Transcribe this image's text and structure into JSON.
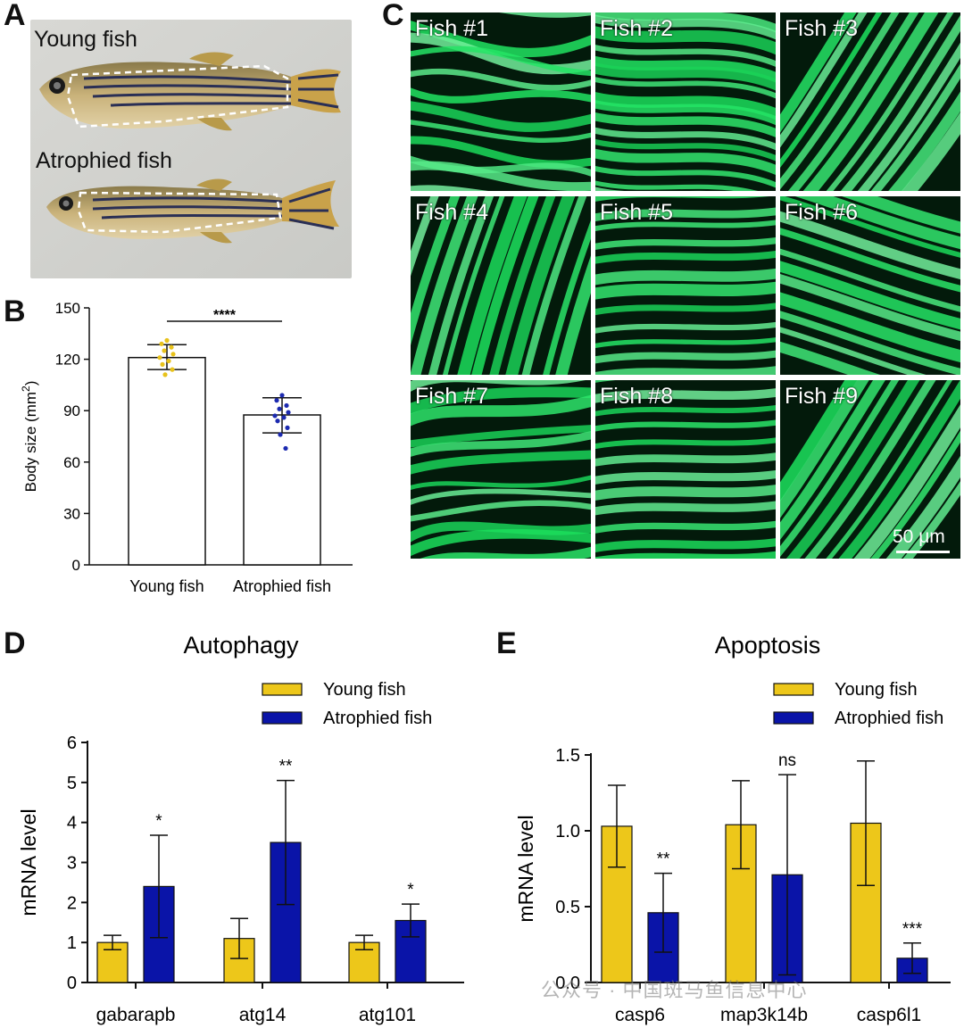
{
  "panels": {
    "A": {
      "letter": "A",
      "label_top": "Young fish",
      "label_bottom": "Atrophied fish"
    },
    "B": {
      "letter": "B"
    },
    "C": {
      "letter": "C",
      "tiles": [
        "Fish #1",
        "Fish #2",
        "Fish #3",
        "Fish #4",
        "Fish #5",
        "Fish #6",
        "Fish #7",
        "Fish #8",
        "Fish #9"
      ],
      "scale_bar": "50 μm"
    },
    "D": {
      "letter": "D"
    },
    "E": {
      "letter": "E"
    }
  },
  "colors": {
    "young": "#EDC71A",
    "atrophied": "#0A14A8",
    "scatter_young": "#E8C21B",
    "scatter_atrophied": "#1C2AB0",
    "fluor": "#3CE87A"
  },
  "watermark": "公众号 · 中国斑马鱼信息中心",
  "chart_data": [
    {
      "id": "B",
      "type": "bar",
      "title": "",
      "ylabel": "Body size (mm",
      "ylabel_sup": "2",
      "ylabel_close": ")",
      "categories": [
        "Young fish",
        "Atrophied fish"
      ],
      "values": [
        121,
        87.5
      ],
      "error": [
        [
          114,
          128.5
        ],
        [
          77,
          97.5
        ]
      ],
      "points": [
        [
          131,
          129,
          127,
          125,
          123,
          121,
          119,
          117,
          114,
          111
        ],
        [
          99,
          96,
          93,
          91,
          89,
          87,
          86,
          84,
          80,
          76,
          68
        ]
      ],
      "ylim": [
        0,
        150
      ],
      "yticks": [
        "0",
        "30",
        "60",
        "90",
        "120",
        "150"
      ],
      "significance": "****"
    },
    {
      "id": "D",
      "type": "bar",
      "title": "Autophagy",
      "ylabel": "mRNA level",
      "categories": [
        "gabarapb",
        "atg14",
        "atg101"
      ],
      "legend": [
        "Young fish",
        "Atrophied fish"
      ],
      "series": [
        {
          "name": "Young fish",
          "values": [
            1.0,
            1.1,
            1.0
          ],
          "err": [
            0.18,
            0.5,
            0.18
          ]
        },
        {
          "name": "Atrophied fish",
          "values": [
            2.4,
            3.5,
            1.55
          ],
          "err": [
            1.28,
            1.55,
            0.41
          ]
        }
      ],
      "ylim": [
        0,
        6
      ],
      "yticks": [
        "0",
        "1",
        "2",
        "3",
        "4",
        "5",
        "6"
      ],
      "significance": [
        "*",
        "**",
        "*"
      ]
    },
    {
      "id": "E",
      "type": "bar",
      "title": "Apoptosis",
      "ylabel": "mRNA level",
      "categories": [
        "casp6",
        "map3k14b",
        "casp6l1"
      ],
      "legend": [
        "Young fish",
        "Atrophied fish"
      ],
      "series": [
        {
          "name": "Young fish",
          "values": [
            1.03,
            1.04,
            1.05
          ],
          "err": [
            0.27,
            0.29,
            0.41
          ]
        },
        {
          "name": "Atrophied fish",
          "values": [
            0.46,
            0.71,
            0.16
          ],
          "err": [
            0.26,
            0.66,
            0.1
          ]
        }
      ],
      "ylim": [
        0,
        1.5
      ],
      "yticks": [
        "0.0",
        "0.5",
        "1.0",
        "1.5"
      ],
      "significance": [
        "**",
        "ns",
        "***"
      ]
    }
  ]
}
